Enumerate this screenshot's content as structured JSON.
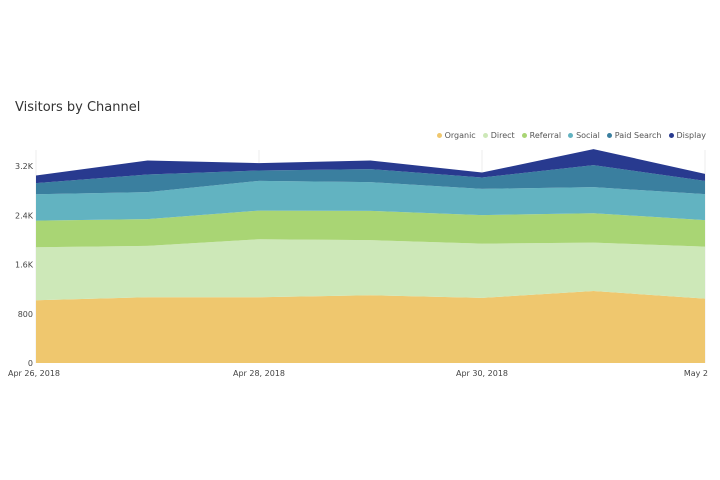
{
  "chart_data": {
    "type": "area",
    "stacked": true,
    "title": "Visitors by Channel",
    "x": [
      "2018-04-26",
      "2018-04-27",
      "2018-04-28",
      "2018-04-29",
      "2018-04-30",
      "2018-05-01",
      "2018-05-02"
    ],
    "x_tick_labels": [
      "Apr 26, 2018",
      "Apr 28, 2018",
      "Apr 30, 2018",
      "May 2"
    ],
    "x_tick_index": [
      0,
      2,
      4,
      6
    ],
    "y_ticks": [
      0,
      800,
      1600,
      2400,
      3200
    ],
    "y_tick_labels": [
      "0",
      "800",
      "1.6K",
      "2.4K",
      "3.2K"
    ],
    "ylim": [
      0,
      3550
    ],
    "legend_position": "top-right",
    "grid": "vertical",
    "series": [
      {
        "name": "Organic",
        "color": "#efc76e",
        "values": [
          1020,
          1068,
          1068,
          1100,
          1057,
          1170,
          1046
        ]
      },
      {
        "name": "Direct",
        "color": "#cde8b8",
        "values": [
          860,
          834,
          943,
          895,
          883,
          785,
          845
        ]
      },
      {
        "name": "Referral",
        "color": "#a9d574",
        "values": [
          433,
          435,
          465,
          477,
          462,
          478,
          429
        ]
      },
      {
        "name": "Social",
        "color": "#62b3c1",
        "values": [
          429,
          439,
          483,
          466,
          427,
          423,
          423
        ]
      },
      {
        "name": "Paid Search",
        "color": "#3a7f9f",
        "values": [
          179,
          286,
          168,
          212,
          184,
          358,
          216
        ]
      },
      {
        "name": "Display",
        "color": "#283a8f",
        "values": [
          124,
          228,
          120,
          140,
          81,
          260,
          114
        ]
      }
    ]
  }
}
